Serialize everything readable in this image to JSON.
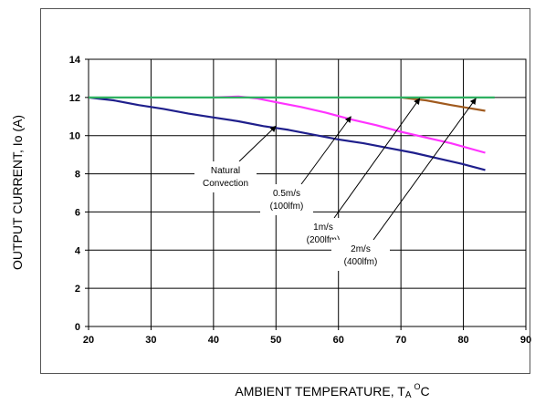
{
  "chart_data": {
    "type": "line",
    "xlabel": "AMBIENT TEMPERATURE, T",
    "xlabel_sub": "A",
    "xlabel_sup": "O",
    "xlabel_unit": "C",
    "ylabel": "OUTPUT CURRENT, Io  (A)",
    "xlim": [
      20,
      90
    ],
    "ylim": [
      0,
      14
    ],
    "xticks": [
      20,
      30,
      40,
      50,
      60,
      70,
      80,
      90
    ],
    "yticks": [
      0,
      2,
      4,
      6,
      8,
      10,
      12,
      14
    ],
    "grid": true,
    "legend": "none",
    "series": [
      {
        "color": "#1f1f8c",
        "x": [
          20,
          24,
          28,
          32,
          36,
          40,
          44,
          48,
          52,
          56,
          60,
          64,
          68,
          72,
          76,
          80,
          83.5
        ],
        "y": [
          12.0,
          11.85,
          11.6,
          11.4,
          11.15,
          10.95,
          10.75,
          10.5,
          10.3,
          10.05,
          9.8,
          9.6,
          9.35,
          9.1,
          8.8,
          8.5,
          8.2
        ]
      },
      {
        "color": "#ff33ff",
        "x": [
          40,
          44,
          47,
          50,
          54,
          58,
          62,
          66,
          70,
          74,
          78,
          83.5
        ],
        "y": [
          12.0,
          12.05,
          11.95,
          11.75,
          11.5,
          11.2,
          10.85,
          10.55,
          10.2,
          9.9,
          9.6,
          9.1
        ]
      },
      {
        "color": "#a05a1e",
        "x": [
          70,
          74,
          78,
          83.5
        ],
        "y": [
          12.0,
          11.85,
          11.6,
          11.3
        ]
      },
      {
        "color": "#2eb060",
        "x": [
          20,
          85
        ],
        "y": [
          12.0,
          12.0
        ]
      }
    ],
    "annotations": [
      {
        "lines": [
          "Natural",
          "Convection"
        ],
        "arrow_to": [
          50,
          10.5
        ]
      },
      {
        "lines": [
          "0.5m/s",
          "(100lfm)"
        ],
        "arrow_to": [
          62,
          11.0
        ]
      },
      {
        "lines": [
          "1m/s",
          "(200lfm)"
        ],
        "arrow_to": [
          73,
          11.95
        ]
      },
      {
        "lines": [
          "2m/s",
          "(400lfm)"
        ],
        "arrow_to": [
          82,
          11.95
        ]
      }
    ]
  }
}
